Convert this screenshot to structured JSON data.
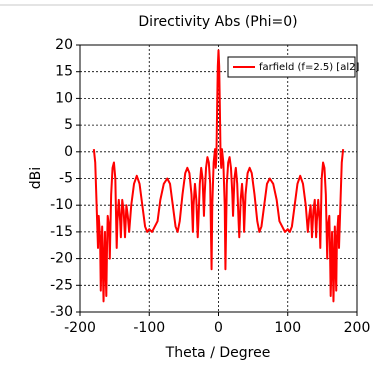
{
  "chart_data": {
    "type": "line",
    "title": "Directivity Abs (Phi=0)",
    "x_label": "Theta / Degree",
    "y_label": "dBi",
    "xlim": [
      -200,
      200
    ],
    "ylim": [
      -30,
      20
    ],
    "xticks": [
      -200,
      -100,
      0,
      100,
      200
    ],
    "yticks": [
      -30,
      -25,
      -20,
      -15,
      -10,
      -5,
      0,
      5,
      10,
      15,
      20
    ],
    "grid": true,
    "legend": "top-right",
    "x": [
      -180,
      -178,
      -176,
      -174,
      -173,
      -171,
      -170,
      -169,
      -168,
      -167,
      -166,
      -165,
      -164,
      -163,
      -162,
      -161,
      -160,
      -158,
      -157,
      -155,
      -153,
      -151,
      -149,
      -147,
      -146,
      -144,
      -142,
      -141,
      -139,
      -137,
      -135,
      -133,
      -131,
      -129,
      -126,
      -122,
      -118,
      -114,
      -110,
      -106,
      -103,
      -100,
      -96,
      -92,
      -88,
      -84,
      -79,
      -74,
      -70,
      -66,
      -62,
      -59,
      -56,
      -52,
      -48,
      -45,
      -42,
      -39,
      -37,
      -36,
      -34,
      -32,
      -30,
      -29,
      -27,
      -25,
      -23,
      -21,
      -20,
      -18,
      -16,
      -14,
      -12,
      -10,
      -9,
      -7,
      -5,
      -4,
      -3,
      -2,
      -1,
      0,
      1,
      2,
      3,
      4,
      5,
      7,
      9,
      10,
      12,
      14,
      16,
      18,
      20,
      21,
      23,
      25,
      27,
      29,
      30,
      32,
      34,
      36,
      37,
      39,
      42,
      45,
      48,
      52,
      56,
      59,
      62,
      66,
      70,
      74,
      79,
      84,
      88,
      92,
      96,
      100,
      103,
      106,
      110,
      114,
      118,
      122,
      126,
      129,
      131,
      133,
      135,
      137,
      139,
      141,
      142,
      144,
      146,
      147,
      149,
      151,
      153,
      155,
      157,
      158,
      160,
      161,
      162,
      163,
      164,
      165,
      166,
      167,
      168,
      169,
      170,
      171,
      173,
      174,
      176,
      178,
      180
    ],
    "series": [
      {
        "name": "farfield (f=2.5) [al2]",
        "color": "#ff0000",
        "values": [
          0.5,
          -2,
          -10,
          -18,
          -12,
          -16,
          -26,
          -20,
          -14,
          -22,
          -28,
          -20,
          -15,
          -22,
          -27,
          -18,
          -12,
          -14,
          -20,
          -8,
          -3,
          -2,
          -5,
          -18,
          -13,
          -9,
          -13,
          -16,
          -9,
          -11,
          -16,
          -10,
          -12,
          -15,
          -10,
          -6,
          -4.5,
          -6,
          -10,
          -14,
          -15,
          -14.5,
          -15,
          -14,
          -13,
          -9,
          -6,
          -5,
          -6,
          -10,
          -14,
          -15,
          -13,
          -8,
          -4,
          -3,
          -4,
          -8,
          -15,
          -10,
          -6,
          -9,
          -16,
          -13,
          -6,
          -3,
          -5,
          -12,
          -8,
          -3,
          -1,
          -2,
          -6,
          -22,
          -10,
          -2,
          0.5,
          -3,
          -1,
          8,
          16,
          19,
          16,
          8,
          -1,
          -3,
          0.5,
          -2,
          -10,
          -22,
          -6,
          -2,
          -1,
          -3,
          -8,
          -12,
          -5,
          -3,
          -6,
          -13,
          -16,
          -9,
          -6,
          -10,
          -15,
          -8,
          -4,
          -3,
          -4,
          -8,
          -13,
          -15,
          -14,
          -10,
          -6,
          -5,
          -6,
          -9,
          -13,
          -14,
          -15,
          -14.5,
          -15,
          -14,
          -10,
          -6,
          -4.5,
          -6,
          -10,
          -15,
          -12,
          -10,
          -16,
          -11,
          -9,
          -16,
          -13,
          -9,
          -13,
          -18,
          -5,
          -2,
          -3,
          -8,
          -20,
          -14,
          -12,
          -18,
          -27,
          -22,
          -15,
          -20,
          -28,
          -22,
          -14,
          -20,
          -26,
          -16,
          -12,
          -18,
          -10,
          -2,
          0.5
        ]
      }
    ]
  }
}
